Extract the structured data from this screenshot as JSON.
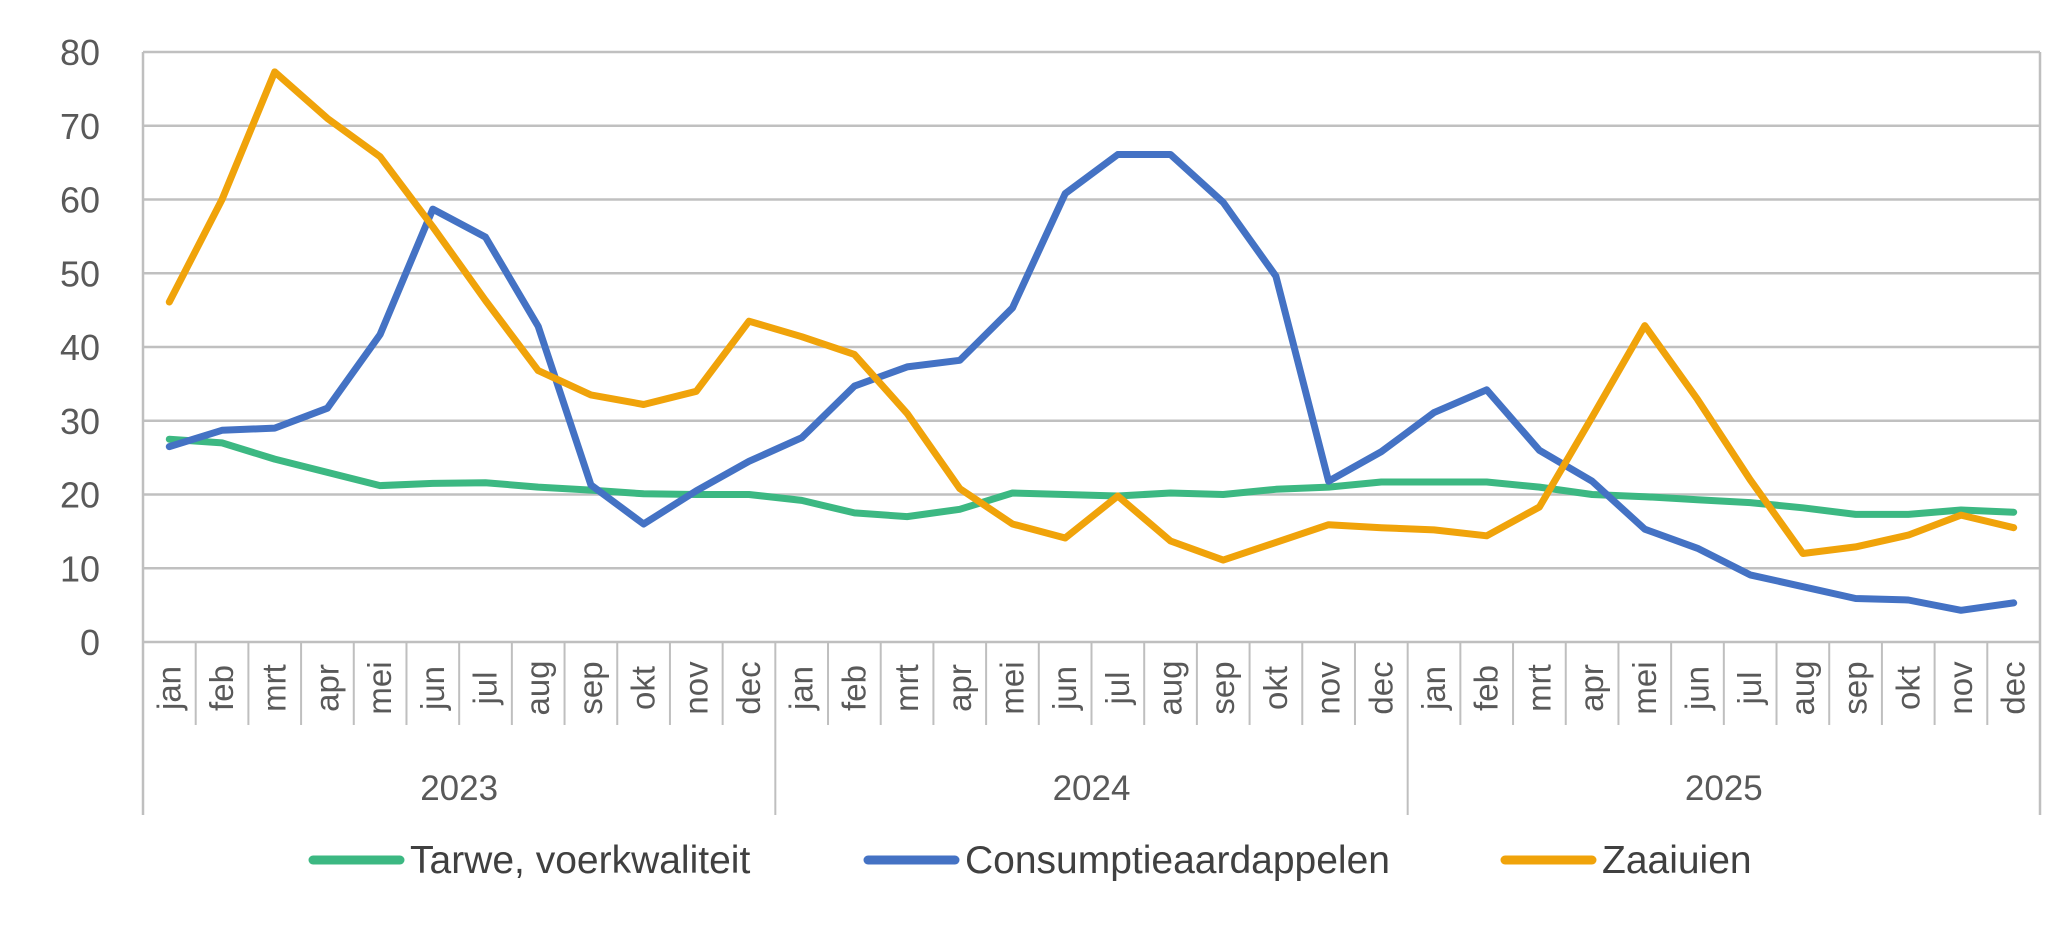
{
  "chart_data": {
    "type": "line",
    "title": "",
    "xlabel": "",
    "ylabel": "",
    "ylim": [
      0,
      80
    ],
    "yticks": [
      0,
      10,
      20,
      30,
      40,
      50,
      60,
      70,
      80
    ],
    "grid": true,
    "legend_position": "bottom",
    "years": [
      {
        "label": "2023",
        "months": [
          "jan",
          "feb",
          "mrt",
          "apr",
          "mei",
          "jun",
          "jul",
          "aug",
          "sep",
          "okt",
          "nov",
          "dec"
        ]
      },
      {
        "label": "2024",
        "months": [
          "jan",
          "feb",
          "mrt",
          "apr",
          "mei",
          "jun",
          "jul",
          "aug",
          "sep",
          "okt",
          "nov",
          "dec"
        ]
      },
      {
        "label": "2025",
        "months": [
          "jan",
          "feb",
          "mrt",
          "apr",
          "mei",
          "jun",
          "jul",
          "aug",
          "sep",
          "okt",
          "nov",
          "dec"
        ]
      }
    ],
    "series": [
      {
        "name": "Tarwe, voerkwaliteit",
        "color": "#3cb882",
        "values": [
          27.5,
          27.0,
          24.8,
          23.0,
          21.2,
          21.5,
          21.6,
          21.0,
          20.6,
          20.1,
          20.0,
          20.0,
          19.2,
          17.5,
          17.0,
          18.0,
          20.2,
          20.0,
          19.8,
          20.2,
          20.0,
          20.7,
          21.0,
          21.7,
          21.7,
          21.7,
          21.0,
          20.0,
          19.7,
          19.3,
          18.9,
          18.2,
          17.3,
          17.3,
          17.9,
          17.6
        ]
      },
      {
        "name": "Consumptieaardappelen",
        "color": "#4472c4",
        "values": [
          26.5,
          28.7,
          29.0,
          31.7,
          41.7,
          58.7,
          54.9,
          42.8,
          21.3,
          16.0,
          20.5,
          24.5,
          27.7,
          34.7,
          37.3,
          38.2,
          45.3,
          60.8,
          66.1,
          66.1,
          59.6,
          49.6,
          21.8,
          25.8,
          31.1,
          34.2,
          26.0,
          21.8,
          15.3,
          12.7,
          9.1,
          7.5,
          5.9,
          5.7,
          4.3,
          5.3
        ]
      },
      {
        "name": "Zaaiuien",
        "color": "#f0a30a",
        "values": [
          46.1,
          60.0,
          77.3,
          71.0,
          65.8,
          56.3,
          46.3,
          36.8,
          33.5,
          32.2,
          34.0,
          43.5,
          41.4,
          39.0,
          31.0,
          20.8,
          16.0,
          14.1,
          19.8,
          13.7,
          11.1,
          13.5,
          15.9,
          15.5,
          15.2,
          14.4,
          18.3,
          30.5,
          42.9,
          32.9,
          22.0,
          12.0,
          12.9,
          14.5,
          17.2,
          15.5
        ]
      }
    ]
  }
}
